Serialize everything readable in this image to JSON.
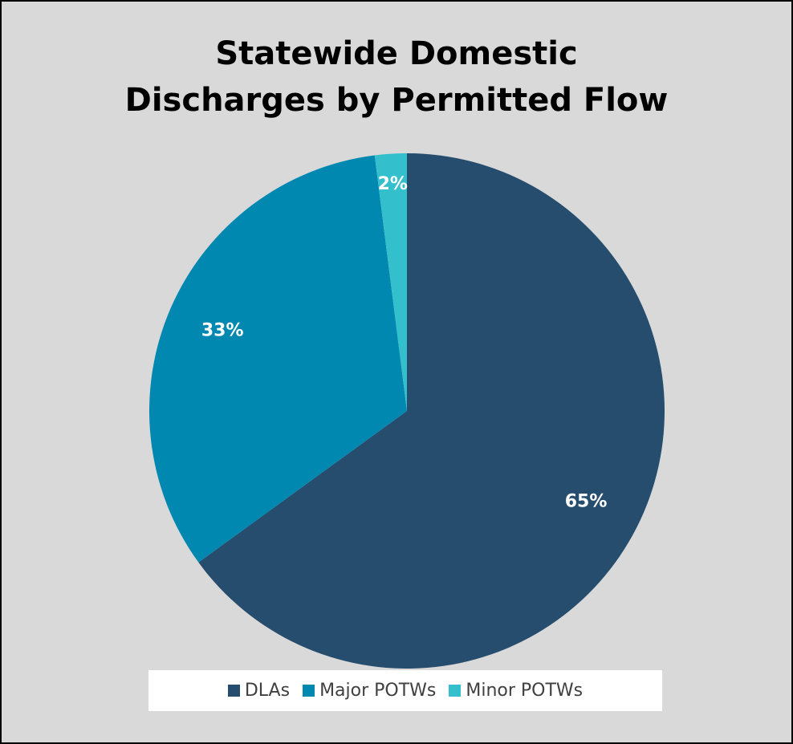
{
  "chart_data": {
    "type": "pie",
    "title": "Statewide Domestic Discharges by Permitted Flow",
    "categories": [
      "DLAs",
      "Major POTWs",
      "Minor POTWs"
    ],
    "values": [
      65,
      33,
      2
    ],
    "labels": [
      "65%",
      "33%",
      "2%"
    ],
    "colors": [
      "#264d6e",
      "#0088b0",
      "#33bfcc"
    ],
    "legend_position": "bottom",
    "start_angle": "12 o'clock",
    "direction": "clockwise"
  }
}
